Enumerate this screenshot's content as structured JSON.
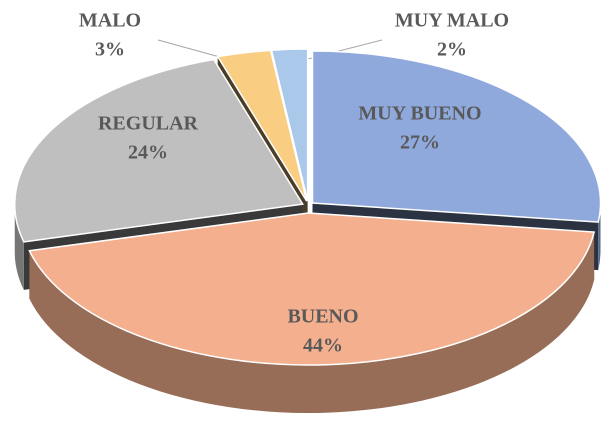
{
  "chart_data": {
    "type": "pie",
    "categories": [
      "MUY BUENO",
      "BUENO",
      "REGULAR",
      "MALO",
      "MUY MALO"
    ],
    "values": [
      27,
      44,
      24,
      3,
      2
    ],
    "value_labels": [
      "27%",
      "44%",
      "24%",
      "3%",
      "2%"
    ],
    "colors": [
      "#8fa9dc",
      "#f4b08e",
      "#bfbfbf",
      "#f9cd82",
      "#a9c8ea"
    ]
  }
}
